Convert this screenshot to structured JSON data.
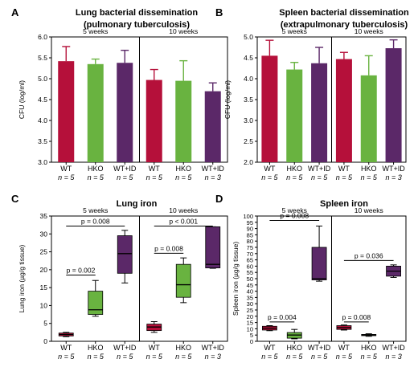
{
  "chart_data": [
    {
      "panel": "A",
      "type": "bar",
      "title": [
        "Lung bacterial dissemination",
        "(pulmonary tuberculosis)"
      ],
      "ylabel": "CFU (log/ml)",
      "ylim": [
        3.0,
        6.0
      ],
      "yticks": [
        "3.0",
        "3.5",
        "4.0",
        "4.5",
        "5.0",
        "5.5",
        "6.0"
      ],
      "groups": [
        {
          "label": "5 weeks",
          "categories": [
            "WT",
            "HKO",
            "WT+ID"
          ],
          "n": [
            "n = 5",
            "n = 5",
            "n = 5"
          ],
          "values": [
            5.42,
            5.35,
            5.38
          ],
          "errors": [
            0.35,
            0.12,
            0.3
          ]
        },
        {
          "label": "10 weeks",
          "categories": [
            "WT",
            "HKO",
            "WT+ID"
          ],
          "n": [
            "n = 5",
            "n = 5",
            "n = 3"
          ],
          "values": [
            4.97,
            4.95,
            4.7
          ],
          "errors": [
            0.25,
            0.48,
            0.2
          ]
        }
      ]
    },
    {
      "panel": "B",
      "type": "bar",
      "title": [
        "Spleen bacterial dissemination",
        "(extrapulmonary tuberculosis)"
      ],
      "ylabel": "CFU (log/ml)",
      "ylim": [
        2.0,
        5.0
      ],
      "yticks": [
        "2.0",
        "2.5",
        "3.0",
        "3.5",
        "4.0",
        "4.5",
        "5.0"
      ],
      "groups": [
        {
          "label": "5 weeks",
          "categories": [
            "WT",
            "HKO",
            "WT+ID"
          ],
          "n": [
            "n = 5",
            "n = 5",
            "n = 5"
          ],
          "values": [
            4.55,
            4.22,
            4.37
          ],
          "errors": [
            0.37,
            0.17,
            0.38
          ]
        },
        {
          "label": "10 weeks",
          "categories": [
            "WT",
            "HKO",
            "WT+ID"
          ],
          "n": [
            "n = 5",
            "n = 5",
            "n = 3"
          ],
          "values": [
            4.47,
            4.08,
            4.73
          ],
          "errors": [
            0.16,
            0.47,
            0.2
          ]
        }
      ]
    },
    {
      "panel": "C",
      "type": "box",
      "title": [
        "Lung iron"
      ],
      "ylabel": "Lung iron (µg/g tissue)",
      "ylim": [
        0,
        35
      ],
      "yticks": [
        "0",
        "5",
        "10",
        "15",
        "20",
        "25",
        "30",
        "35"
      ],
      "groups": [
        {
          "label": "5 weeks",
          "categories": [
            "WT",
            "HKO",
            "WT+ID"
          ],
          "n": [
            "n = 5",
            "n = 5",
            "n = 5"
          ],
          "boxes": [
            {
              "min": 1.3,
              "q1": 1.5,
              "median": 1.9,
              "q3": 2.3,
              "max": 2.5
            },
            {
              "min": 7.0,
              "q1": 7.5,
              "median": 8.8,
              "q3": 14.0,
              "max": 17.0
            },
            {
              "min": 16.3,
              "q1": 19.0,
              "median": 24.5,
              "q3": 29.5,
              "max": 31.0
            }
          ]
        },
        {
          "label": "10 weeks",
          "categories": [
            "WT",
            "HKO",
            "WT+ID"
          ],
          "n": [
            "n = 5",
            "n = 5",
            "n = 3"
          ],
          "boxes": [
            {
              "min": 2.5,
              "q1": 3.0,
              "median": 4.0,
              "q3": 4.8,
              "max": 5.5
            },
            {
              "min": 10.8,
              "q1": 12.3,
              "median": 15.8,
              "q3": 21.5,
              "max": 23.3
            },
            {
              "min": 20.4,
              "q1": 20.5,
              "median": 21.5,
              "q3": 32.0,
              "max": 32.0
            }
          ]
        }
      ],
      "comparisons": [
        {
          "group": 0,
          "from": 0,
          "to": 1,
          "label": "p = 0.002",
          "y": 18.5
        },
        {
          "group": 0,
          "from": 0,
          "to": 2,
          "label": "p = 0.008",
          "y": 32.2
        },
        {
          "group": 1,
          "from": 0,
          "to": 1,
          "label": "p = 0.008",
          "y": 24.6
        },
        {
          "group": 1,
          "from": 0,
          "to": 2,
          "label": "p < 0.001",
          "y": 32.2
        }
      ]
    },
    {
      "panel": "D",
      "type": "box",
      "title": [
        "Spleen iron"
      ],
      "ylabel": "Spleen iron (µg/g tissue)",
      "ylim": [
        0,
        100
      ],
      "yticks": [
        "0",
        "5",
        "10",
        "15",
        "20",
        "25",
        "30",
        "35",
        "40",
        "45",
        "50",
        "55",
        "60",
        "65",
        "70",
        "75",
        "80",
        "85",
        "90",
        "95",
        "100"
      ],
      "groups": [
        {
          "label": "5 weeks",
          "categories": [
            "WT",
            "HKO",
            "WT+ID"
          ],
          "n": [
            "n = 5",
            "n = 5",
            "n = 5"
          ],
          "boxes": [
            {
              "min": 8.5,
              "q1": 9.0,
              "median": 10.5,
              "q3": 12.0,
              "max": 12.5
            },
            {
              "min": 2.0,
              "q1": 2.5,
              "median": 5.0,
              "q3": 7.0,
              "max": 9.5
            },
            {
              "min": 48.0,
              "q1": 49.0,
              "median": 50.0,
              "q3": 75.0,
              "max": 92.0
            }
          ]
        },
        {
          "label": "10 weeks",
          "categories": [
            "WT",
            "HKO",
            "WT+ID"
          ],
          "n": [
            "n = 5",
            "n = 5",
            "n = 3"
          ],
          "boxes": [
            {
              "min": 9.0,
              "q1": 9.5,
              "median": 11.0,
              "q3": 12.5,
              "max": 13.0
            },
            {
              "min": 4.0,
              "q1": 4.5,
              "median": 5.0,
              "q3": 5.5,
              "max": 6.0
            },
            {
              "min": 51.0,
              "q1": 52.0,
              "median": 56.0,
              "q3": 60.0,
              "max": 61.0
            }
          ]
        }
      ],
      "comparisons": [
        {
          "group": 0,
          "from": 0,
          "to": 1,
          "label": "p = 0.004",
          "y": 15.5
        },
        {
          "group": 0,
          "from": 0,
          "to": 2,
          "label": "p = 0.008",
          "y": 96.5
        },
        {
          "group": 1,
          "from": 0,
          "to": 1,
          "label": "p = 0.008",
          "y": 15.5
        },
        {
          "group": 1,
          "from": 0,
          "to": 2,
          "label": "p = 0.036",
          "y": 64.5
        }
      ]
    }
  ],
  "colors": {
    "WT": "#b5103a",
    "HKO": "#69b340",
    "WT+ID": "#5b2868",
    "axis": "#000000"
  }
}
